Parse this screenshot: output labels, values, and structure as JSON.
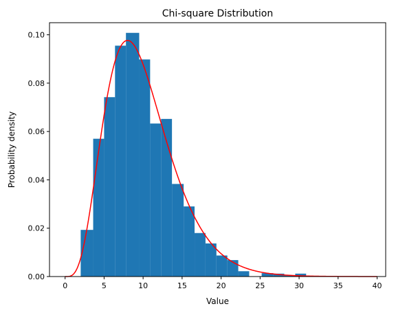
{
  "chart_data": {
    "type": "bar",
    "title": "Chi-square Distribution",
    "xlabel": "Value",
    "ylabel": "Probability density",
    "xlim": [
      -2,
      41.1
    ],
    "ylim": [
      0,
      0.105
    ],
    "xticks": [
      0,
      5,
      10,
      15,
      20,
      25,
      30,
      35,
      40
    ],
    "yticks": [
      0.0,
      0.02,
      0.04,
      0.06,
      0.08,
      0.1
    ],
    "ytick_labels": [
      "0.00",
      "0.02",
      "0.04",
      "0.06",
      "0.08",
      "0.10"
    ],
    "grid": false,
    "legend": "none",
    "histogram": {
      "color": "#1f77b4",
      "bins": [
        {
          "start": 2.0,
          "end": 3.6,
          "density": 0.0193
        },
        {
          "start": 3.6,
          "end": 5.0,
          "density": 0.057
        },
        {
          "start": 5.0,
          "end": 6.4,
          "density": 0.0742
        },
        {
          "start": 6.4,
          "end": 7.8,
          "density": 0.0955
        },
        {
          "start": 7.8,
          "end": 9.5,
          "density": 0.1008
        },
        {
          "start": 9.5,
          "end": 10.9,
          "density": 0.0898
        },
        {
          "start": 10.9,
          "end": 12.3,
          "density": 0.0633
        },
        {
          "start": 12.3,
          "end": 13.7,
          "density": 0.0652
        },
        {
          "start": 13.7,
          "end": 15.2,
          "density": 0.0383
        },
        {
          "start": 15.2,
          "end": 16.6,
          "density": 0.029
        },
        {
          "start": 16.6,
          "end": 18.0,
          "density": 0.018
        },
        {
          "start": 18.0,
          "end": 19.4,
          "density": 0.0137
        },
        {
          "start": 19.4,
          "end": 20.8,
          "density": 0.0087
        },
        {
          "start": 20.8,
          "end": 22.2,
          "density": 0.0068
        },
        {
          "start": 22.2,
          "end": 23.6,
          "density": 0.0022
        },
        {
          "start": 23.6,
          "end": 25.2,
          "density": 0.0
        },
        {
          "start": 25.2,
          "end": 26.7,
          "density": 0.0014
        },
        {
          "start": 26.7,
          "end": 28.1,
          "density": 0.0012
        },
        {
          "start": 28.1,
          "end": 29.5,
          "density": 0.0004
        },
        {
          "start": 29.5,
          "end": 30.9,
          "density": 0.0012
        }
      ]
    },
    "curve": {
      "type": "line",
      "color": "#ff0000",
      "degrees_of_freedom": 10,
      "x_range": [
        0,
        40
      ]
    }
  }
}
